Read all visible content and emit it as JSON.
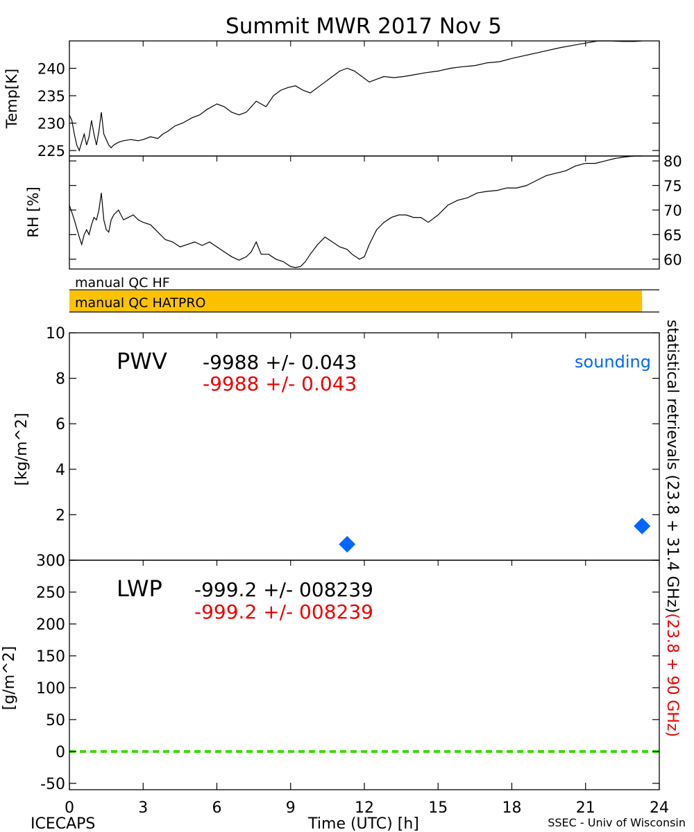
{
  "title": "Summit MWR 2017 Nov  5",
  "footer": {
    "left": "ICECAPS",
    "center": "Time (UTC) [h]",
    "right": "SSEC - Univ of Wisconsin"
  },
  "colors": {
    "axis": "#000000",
    "qc_bar": "#fcc200",
    "sounding": "#0066ff",
    "red_text": "#ee0000",
    "lwp_zero": "#33dd00"
  },
  "chart_data": [
    {
      "type": "line",
      "panel": "temperature",
      "ylabel": "Temp[K]",
      "ylim": [
        224,
        245
      ],
      "yticks": [
        225,
        230,
        235,
        240
      ],
      "xlim": [
        0,
        24
      ],
      "series": [
        {
          "x": [
            0.0,
            0.1,
            0.2,
            0.3,
            0.4,
            0.5,
            0.6,
            0.7,
            0.8,
            0.9,
            1.0,
            1.1,
            1.2,
            1.3,
            1.4,
            1.5,
            1.6,
            1.7,
            1.8,
            2.0,
            2.2,
            2.5,
            2.8,
            3.0,
            3.3,
            3.6,
            3.8,
            4.0,
            4.3,
            4.6,
            5.0,
            5.3,
            5.6,
            6.0,
            6.3,
            6.6,
            6.9,
            7.2,
            7.4,
            7.6,
            7.8,
            8.0,
            8.3,
            8.6,
            8.9,
            9.2,
            9.5,
            9.8,
            10.1,
            10.4,
            10.7,
            11.0,
            11.3,
            11.6,
            11.9,
            12.2,
            12.5,
            12.8,
            13.2,
            13.6,
            14.0,
            14.5,
            15.0,
            15.5,
            16.0,
            16.5,
            17.0,
            17.5,
            18.0,
            18.5,
            19.0,
            19.5,
            20.0,
            20.5,
            21.0,
            21.5,
            22.0,
            22.5,
            23.0,
            23.3
          ],
          "y": [
            231.5,
            230.5,
            228.0,
            226.0,
            225.0,
            226.5,
            228.0,
            226.0,
            227.5,
            230.5,
            228.0,
            226.0,
            228.5,
            232.0,
            228.0,
            227.0,
            226.0,
            225.5,
            226.0,
            226.5,
            226.8,
            227.0,
            226.8,
            227.0,
            227.5,
            227.2,
            228.0,
            228.5,
            229.5,
            230.0,
            231.0,
            231.5,
            232.5,
            233.5,
            233.0,
            232.0,
            231.5,
            232.0,
            233.0,
            234.0,
            233.5,
            233.0,
            235.0,
            236.0,
            236.5,
            236.8,
            236.0,
            235.5,
            236.5,
            237.5,
            238.5,
            239.5,
            240.0,
            239.5,
            238.5,
            237.5,
            238.0,
            238.5,
            238.3,
            238.5,
            238.8,
            239.2,
            239.5,
            240.0,
            240.3,
            240.5,
            241.0,
            241.2,
            241.8,
            242.3,
            242.8,
            243.3,
            243.8,
            244.2,
            244.6,
            245.0,
            245.0,
            244.9,
            244.9,
            245.0
          ]
        }
      ]
    },
    {
      "type": "line",
      "panel": "relative-humidity",
      "ylabel": "RH [%]",
      "ylim": [
        58,
        81
      ],
      "yticks": [
        60,
        65,
        70,
        75,
        80
      ],
      "xlim": [
        0,
        24
      ],
      "series": [
        {
          "x": [
            0.0,
            0.2,
            0.4,
            0.5,
            0.6,
            0.7,
            0.8,
            0.9,
            1.0,
            1.1,
            1.2,
            1.3,
            1.4,
            1.5,
            1.6,
            1.7,
            1.8,
            2.0,
            2.2,
            2.4,
            2.6,
            2.8,
            3.0,
            3.3,
            3.6,
            3.9,
            4.2,
            4.5,
            4.8,
            5.1,
            5.4,
            5.7,
            6.0,
            6.3,
            6.6,
            6.9,
            7.2,
            7.4,
            7.6,
            7.8,
            8.1,
            8.4,
            8.7,
            9.0,
            9.2,
            9.4,
            9.6,
            9.8,
            10.1,
            10.4,
            10.7,
            11.0,
            11.3,
            11.5,
            11.8,
            12.0,
            12.2,
            12.5,
            12.8,
            13.1,
            13.4,
            13.7,
            14.0,
            14.3,
            14.6,
            15.0,
            15.4,
            15.8,
            16.2,
            16.6,
            17.0,
            17.4,
            17.8,
            18.2,
            18.6,
            19.0,
            19.4,
            19.8,
            20.2,
            20.6,
            21.0,
            21.4,
            21.8,
            22.2,
            22.6,
            23.0,
            23.3
          ],
          "y": [
            71.0,
            68.0,
            64.5,
            63.0,
            65.0,
            66.0,
            65.0,
            67.0,
            68.5,
            68.0,
            70.0,
            73.5,
            68.0,
            66.0,
            65.5,
            68.0,
            69.0,
            70.0,
            68.0,
            68.5,
            69.0,
            68.0,
            67.5,
            67.0,
            65.5,
            64.0,
            63.5,
            62.5,
            63.0,
            63.5,
            62.8,
            63.5,
            62.5,
            61.5,
            60.5,
            59.8,
            60.5,
            61.5,
            63.5,
            61.0,
            61.0,
            60.0,
            59.5,
            58.5,
            58.3,
            58.5,
            59.5,
            61.0,
            63.0,
            64.5,
            63.5,
            62.5,
            62.0,
            61.0,
            60.0,
            60.5,
            63.0,
            66.0,
            67.5,
            68.5,
            69.0,
            69.0,
            68.5,
            68.5,
            67.5,
            69.0,
            71.0,
            72.0,
            72.5,
            73.5,
            73.8,
            74.0,
            74.5,
            74.5,
            75.0,
            76.0,
            77.0,
            77.5,
            78.0,
            79.0,
            79.5,
            79.5,
            80.0,
            80.5,
            80.8,
            81.0,
            81.0
          ]
        }
      ]
    },
    {
      "type": "scatter",
      "panel": "precipitable-water-vapor",
      "ylabel": "[kg/m^2]",
      "ylim": [
        0,
        10
      ],
      "yticks": [
        0,
        2,
        4,
        6,
        8,
        10
      ],
      "xlim": [
        0,
        24
      ],
      "label": "PWV",
      "stats": [
        "-9988 +/- 0.043",
        "-9988 +/- 0.043"
      ],
      "legend": "sounding",
      "series": [
        {
          "name": "sounding",
          "x": [
            11.3,
            23.3
          ],
          "y": [
            0.7,
            1.5
          ]
        }
      ]
    },
    {
      "type": "line",
      "panel": "liquid-water-path",
      "ylabel": "[g/m^2]",
      "ylim": [
        -60,
        300
      ],
      "yticks": [
        -50,
        0,
        50,
        100,
        150,
        200,
        250,
        300
      ],
      "xlim": [
        0,
        24
      ],
      "xticks": [
        0,
        3,
        6,
        9,
        12,
        15,
        18,
        21,
        24
      ],
      "label": "LWP",
      "stats": [
        "-999.2 +/- 008239",
        "-999.2 +/- 008239"
      ],
      "zero_line": 0
    }
  ],
  "qc": {
    "hf_label": "manual QC HF",
    "hatpro_label": "manual QC HATPRO",
    "hatpro_range": [
      0,
      23.3
    ]
  },
  "side_labels": {
    "black": "statistical retrievals (23.8 + 31.4 GHz)",
    "red": "(23.8 + 90 GHz)"
  }
}
